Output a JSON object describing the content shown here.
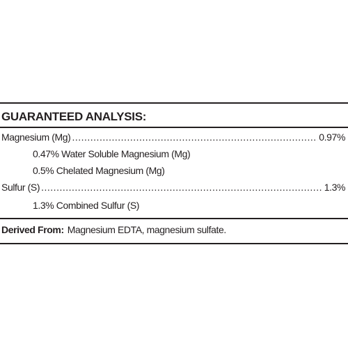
{
  "header": {
    "title": "GUARANTEED ANALYSIS:"
  },
  "rows": [
    {
      "label": "Magnesium (Mg)",
      "value": "0.97%"
    },
    {
      "label": "0.47% Water Soluble Magnesium (Mg)"
    },
    {
      "label": "0.5% Chelated Magnesium (Mg)"
    },
    {
      "label": "Sulfur (S)",
      "value": "1.3%"
    },
    {
      "label": "1.3% Combined Sulfur (S)"
    }
  ],
  "footer": {
    "label": "Derived From:",
    "text": "Magnesium EDTA, magnesium sulfate."
  }
}
